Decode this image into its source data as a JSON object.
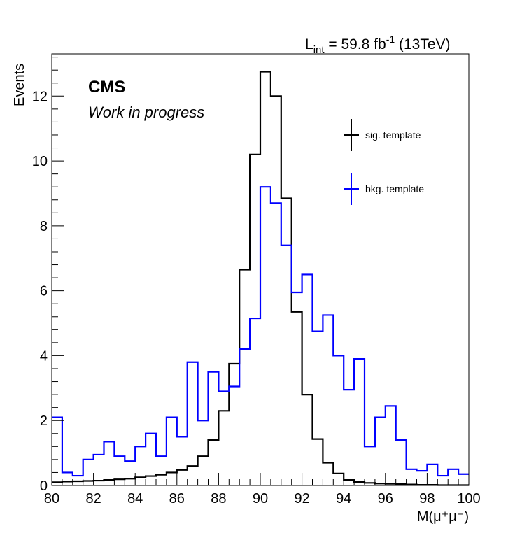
{
  "header": {
    "lumi_main": "L",
    "lumi_sub": "int",
    "lumi_value": " = 59.8 fb",
    "lumi_sup": "-1",
    "lumi_energy": " (13TeV)"
  },
  "labels": {
    "experiment": "CMS",
    "status": "Work in progress"
  },
  "colors": {
    "signal": "#000000",
    "background": "#0000ff",
    "frame": "#000000"
  },
  "chart_data": {
    "type": "line",
    "style": "step-histogram",
    "xlabel": "M(μ⁺μ⁻)",
    "ylabel": "Events",
    "xlim": [
      80,
      100
    ],
    "ylim": [
      0,
      13.3
    ],
    "x_ticks": [
      80,
      82,
      84,
      86,
      88,
      90,
      92,
      94,
      96,
      98,
      100
    ],
    "y_ticks": [
      0,
      2,
      4,
      6,
      8,
      10,
      12
    ],
    "grid": false,
    "legend_position": "top-right",
    "bin_edges": [
      80,
      80.5,
      81,
      81.5,
      82,
      82.5,
      83,
      83.5,
      84,
      84.5,
      85,
      85.5,
      86,
      86.5,
      87,
      87.5,
      88,
      88.5,
      89,
      89.5,
      90,
      90.5,
      91,
      91.5,
      92,
      92.5,
      93,
      93.5,
      94,
      94.5,
      95,
      95.5,
      96,
      96.5,
      97,
      97.5,
      98,
      98.5,
      99,
      99.5,
      100
    ],
    "series": [
      {
        "name": "sig. template",
        "color": "#000000",
        "values": [
          0.1,
          0.12,
          0.13,
          0.14,
          0.15,
          0.17,
          0.19,
          0.21,
          0.25,
          0.29,
          0.33,
          0.4,
          0.48,
          0.6,
          0.9,
          1.4,
          2.3,
          3.75,
          6.65,
          10.2,
          12.75,
          12.0,
          8.85,
          5.35,
          2.8,
          1.43,
          0.7,
          0.37,
          0.17,
          0.11,
          0.08,
          0.06,
          0.05,
          0.04,
          0.03,
          0.02,
          0.02,
          0.01,
          0.01,
          0.01
        ]
      },
      {
        "name": "bkg. template",
        "color": "#0000ff",
        "values": [
          2.1,
          0.4,
          0.3,
          0.8,
          0.95,
          1.35,
          0.9,
          0.75,
          1.2,
          1.6,
          0.9,
          2.1,
          1.5,
          3.8,
          2.0,
          3.5,
          2.9,
          3.05,
          4.2,
          5.15,
          9.2,
          8.7,
          7.4,
          5.95,
          6.5,
          4.75,
          5.25,
          4.0,
          2.95,
          3.9,
          1.2,
          2.1,
          2.45,
          1.4,
          0.5,
          0.45,
          0.65,
          0.3,
          0.5,
          0.35
        ]
      }
    ]
  }
}
